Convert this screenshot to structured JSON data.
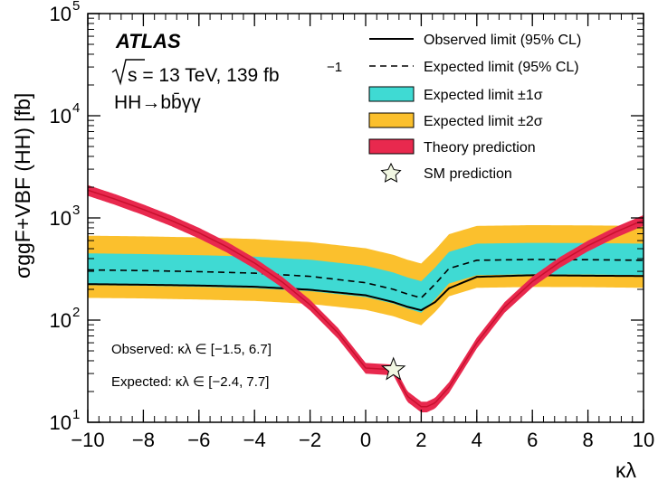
{
  "chart_data": {
    "type": "line",
    "xlabel": "κλ",
    "ylabel": "σggF+VBF (HH) [fb]",
    "xlim": [
      -10,
      10
    ],
    "ylim": [
      10,
      100000
    ],
    "yscale": "log",
    "x_ticks": [
      "−10",
      "−8",
      "−6",
      "−4",
      "−2",
      "0",
      "2",
      "4",
      "6",
      "8",
      "10"
    ],
    "y_ticks": [
      "10",
      "10",
      "10",
      "10",
      "10"
    ],
    "y_tick_exponents": [
      "1",
      "2",
      "3",
      "4",
      "5"
    ],
    "experiment": "ATLAS",
    "energy_label": "s = 13 TeV, 139 fb",
    "lumi_exponent": "−1",
    "channel_label": "HH→bb̄γγ",
    "legend_position": "top-right",
    "legend": [
      {
        "label": "Observed limit (95% CL)",
        "style": "solid",
        "color": "#000000"
      },
      {
        "label": "Expected limit (95% CL)",
        "style": "dashed",
        "color": "#000000"
      },
      {
        "label": "Expected limit ±1σ",
        "style": "band",
        "color": "#3fdad3"
      },
      {
        "label": "Expected limit ±2σ",
        "style": "band",
        "color": "#fbc02d"
      },
      {
        "label": "Theory prediction",
        "style": "band",
        "color": "#e8294e"
      },
      {
        "label": "SM prediction",
        "style": "star",
        "color": "#f1f7e2"
      }
    ],
    "annotations": [
      {
        "prefix": "Observed: ",
        "symbol": "κλ",
        "text": " ∈ [−1.5, 6.7]"
      },
      {
        "prefix": "Expected: ",
        "symbol": "κλ",
        "text": " ∈ [−2.4, 7.7]"
      }
    ],
    "x": [
      -10,
      -8,
      -6,
      -4,
      -2,
      0,
      1,
      1.5,
      2,
      2.5,
      3,
      4,
      6,
      8,
      10
    ],
    "series": [
      {
        "name": "Observed limit (95% CL)",
        "values": [
          225,
          222,
          218,
          212,
          198,
          175,
          150,
          135,
          125,
          150,
          205,
          265,
          275,
          272,
          270
        ]
      },
      {
        "name": "Expected limit (95% CL)",
        "values": [
          310,
          305,
          298,
          288,
          268,
          232,
          200,
          180,
          165,
          225,
          320,
          385,
          392,
          390,
          385
        ]
      },
      {
        "name": "Expected limit ±1σ",
        "lower": [
          220,
          217,
          212,
          205,
          192,
          168,
          145,
          130,
          118,
          160,
          228,
          275,
          281,
          279,
          276
        ],
        "upper": [
          450,
          443,
          432,
          418,
          390,
          340,
          292,
          262,
          240,
          327,
          465,
          560,
          570,
          567,
          560
        ]
      },
      {
        "name": "Expected limit ±2σ",
        "lower": [
          165,
          163,
          159,
          154,
          144,
          126,
          109,
          98,
          89,
          120,
          171,
          207,
          211,
          210,
          207
        ],
        "upper": [
          670,
          660,
          645,
          622,
          580,
          505,
          435,
          390,
          358,
          487,
          693,
          835,
          850,
          845,
          835
        ]
      }
    ],
    "theory": {
      "x": [
        -10,
        -9,
        -8,
        -7,
        -6,
        -5,
        -4,
        -3,
        -2,
        -1,
        0,
        1,
        1.5,
        2,
        2.2,
        2.5,
        3,
        4,
        5,
        6,
        7,
        8,
        9,
        10
      ],
      "values": [
        1870,
        1520,
        1210,
        945,
        715,
        522,
        362,
        236,
        141,
        75,
        34,
        32.7,
        18,
        14.2,
        14.2,
        15.5,
        22,
        60,
        134,
        238,
        371,
        535,
        728,
        952
      ],
      "band_fraction": 0.12
    },
    "sm_point": {
      "x": 1,
      "y": 32.7
    }
  }
}
